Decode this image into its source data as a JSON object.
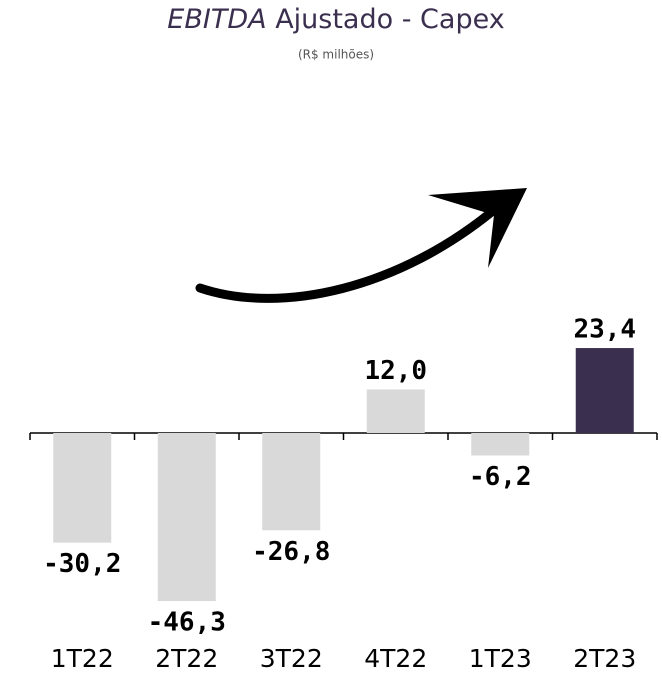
{
  "chart_data": {
    "type": "bar",
    "title": "EBITDA Ajustado - Capex",
    "subtitle": "(R$ milhões)",
    "categories": [
      "1T22",
      "2T22",
      "3T22",
      "4T22",
      "1T23",
      "2T23"
    ],
    "values": [
      -30.2,
      -46.3,
      -26.8,
      12.0,
      -6.2,
      23.4
    ],
    "value_labels": [
      "-30,2",
      "-46,3",
      "-26,8",
      "12,0",
      "-6,2",
      "23,4"
    ],
    "colors": [
      "#d9d9d9",
      "#d9d9d9",
      "#d9d9d9",
      "#d9d9d9",
      "#d9d9d9",
      "#3b2f4f"
    ]
  }
}
